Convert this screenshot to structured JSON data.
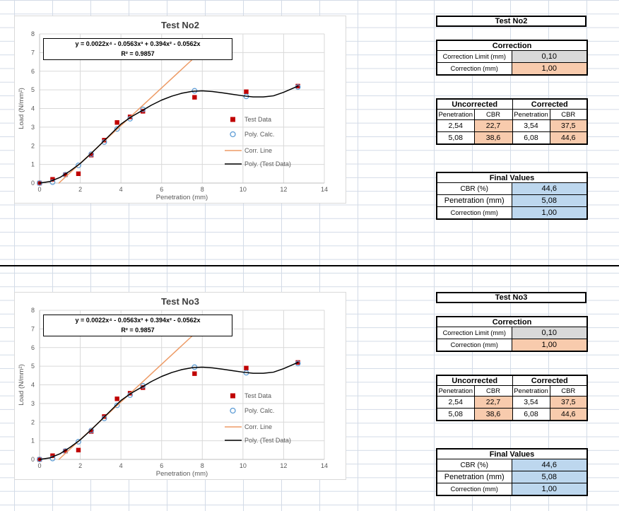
{
  "colors": {
    "cell_gray": "#D9D9D9",
    "cell_orange": "#F8CBAD",
    "cell_blue": "#BDD7EE",
    "test_data_red": "#C00000",
    "poly_calc_blue": "#5B9BD5",
    "corr_line_orange": "#ED9B66",
    "trendline_black": "#000000"
  },
  "chart_data": [
    {
      "type": "scatter",
      "title": "Test No2",
      "xlabel": "Penetration (mm)",
      "ylabel": "Load (N/mm²)",
      "xlim": [
        0,
        14
      ],
      "ylim": [
        0,
        8
      ],
      "xtick_step": 2,
      "ytick_step": 1,
      "grid": true,
      "legend_position": "inside-right",
      "equation": "y = 0.0022x⁴ - 0.0563x³ + 0.394x² - 0.0562x",
      "r_squared": "R² = 0.9857",
      "series": [
        {
          "name": "Test Data",
          "kind": "points",
          "marker": "square",
          "color": "#C00000",
          "x": [
            0,
            0.64,
            1.27,
            1.91,
            2.54,
            3.18,
            3.81,
            4.45,
            5.08,
            7.62,
            10.16,
            12.7
          ],
          "y": [
            0,
            0.2,
            0.45,
            0.5,
            1.5,
            2.3,
            3.25,
            3.55,
            3.85,
            4.6,
            4.9,
            5.2
          ]
        },
        {
          "name": "Poly. Calc.",
          "kind": "points",
          "marker": "circle",
          "color": "#5B9BD5",
          "x": [
            0,
            0.64,
            1.27,
            1.91,
            2.54,
            3.18,
            3.81,
            4.45,
            5.08,
            7.62,
            10.16,
            12.7
          ],
          "y": [
            0,
            0.05,
            0.45,
            0.95,
            1.55,
            2.2,
            2.9,
            3.45,
            3.95,
            4.95,
            4.65,
            5.15
          ]
        },
        {
          "name": "Corr. Line",
          "kind": "line",
          "color": "#ED9B66",
          "x": [
            0.95,
            7.6
          ],
          "y": [
            0,
            6.72
          ]
        },
        {
          "name": "Poly. (Test Data)",
          "kind": "line",
          "color": "#000000",
          "x": [
            0,
            0.5,
            1,
            1.5,
            2,
            2.5,
            3,
            3.5,
            4,
            4.5,
            5,
            5.5,
            6,
            6.5,
            7,
            7.5,
            8,
            8.5,
            9,
            9.5,
            10,
            10.5,
            11,
            11.5,
            12,
            12.7
          ],
          "y": [
            0,
            0.08,
            0.3,
            0.65,
            1.05,
            1.55,
            2.08,
            2.62,
            3.16,
            3.55,
            3.86,
            4.18,
            4.45,
            4.66,
            4.82,
            4.92,
            4.95,
            4.91,
            4.84,
            4.76,
            4.68,
            4.62,
            4.62,
            4.68,
            4.87,
            5.2
          ]
        }
      ]
    },
    {
      "type": "scatter",
      "title": "Test No3",
      "xlabel": "Penetration (mm)",
      "ylabel": "Load (N/mm²)",
      "xlim": [
        0,
        14
      ],
      "ylim": [
        0,
        8
      ],
      "xtick_step": 2,
      "ytick_step": 1,
      "grid": true,
      "legend_position": "inside-right",
      "equation": "y = 0.0022x⁴ - 0.0563x³ + 0.394x² - 0.0562x",
      "r_squared": "R² = 0.9857",
      "series": [
        {
          "name": "Test Data",
          "kind": "points",
          "marker": "square",
          "color": "#C00000",
          "x": [
            0,
            0.64,
            1.27,
            1.91,
            2.54,
            3.18,
            3.81,
            4.45,
            5.08,
            7.62,
            10.16,
            12.7
          ],
          "y": [
            0,
            0.2,
            0.45,
            0.5,
            1.5,
            2.3,
            3.25,
            3.55,
            3.85,
            4.6,
            4.9,
            5.2
          ]
        },
        {
          "name": "Poly. Calc.",
          "kind": "points",
          "marker": "circle",
          "color": "#5B9BD5",
          "x": [
            0,
            0.64,
            1.27,
            1.91,
            2.54,
            3.18,
            3.81,
            4.45,
            5.08,
            7.62,
            10.16,
            12.7
          ],
          "y": [
            0,
            0.05,
            0.45,
            0.95,
            1.55,
            2.2,
            2.9,
            3.45,
            3.95,
            4.95,
            4.65,
            5.15
          ]
        },
        {
          "name": "Corr. Line",
          "kind": "line",
          "color": "#ED9B66",
          "x": [
            0.95,
            7.6
          ],
          "y": [
            0,
            6.72
          ]
        },
        {
          "name": "Poly. (Test Data)",
          "kind": "line",
          "color": "#000000",
          "x": [
            0,
            0.5,
            1,
            1.5,
            2,
            2.5,
            3,
            3.5,
            4,
            4.5,
            5,
            5.5,
            6,
            6.5,
            7,
            7.5,
            8,
            8.5,
            9,
            9.5,
            10,
            10.5,
            11,
            11.5,
            12,
            12.7
          ],
          "y": [
            0,
            0.08,
            0.3,
            0.65,
            1.05,
            1.55,
            2.08,
            2.62,
            3.16,
            3.55,
            3.86,
            4.18,
            4.45,
            4.66,
            4.82,
            4.92,
            4.95,
            4.91,
            4.84,
            4.76,
            4.68,
            4.62,
            4.62,
            4.68,
            4.87,
            5.2
          ]
        }
      ]
    }
  ],
  "sections": [
    {
      "header": "Test No2",
      "correction": {
        "title": "Correction",
        "rows": [
          {
            "label": "Correction Limit (mm)",
            "value": "0,10"
          },
          {
            "label": "Correction (mm)",
            "value": "1,00"
          }
        ]
      },
      "cbr": {
        "groups": [
          "Uncorrected",
          "Corrected"
        ],
        "subheaders": [
          "Penetration",
          "CBR",
          "Penetration",
          "CBR"
        ],
        "rows": [
          [
            "2,54",
            "22,7",
            "3,54",
            "37,5"
          ],
          [
            "5,08",
            "38,6",
            "6,08",
            "44,6"
          ]
        ]
      },
      "final": {
        "title": "Final Values",
        "rows": [
          {
            "label": "CBR (%)",
            "value": "44,6"
          },
          {
            "label": "Penetration (mm)",
            "value": "5,08"
          },
          {
            "label": "Correction (mm)",
            "value": "1,00"
          }
        ]
      }
    },
    {
      "header": "Test No3",
      "correction": {
        "title": "Correction",
        "rows": [
          {
            "label": "Correction Limit (mm)",
            "value": "0,10"
          },
          {
            "label": "Correction (mm)",
            "value": "1,00"
          }
        ]
      },
      "cbr": {
        "groups": [
          "Uncorrected",
          "Corrected"
        ],
        "subheaders": [
          "Penetration",
          "CBR",
          "Penetration",
          "CBR"
        ],
        "rows": [
          [
            "2,54",
            "22,7",
            "3,54",
            "37,5"
          ],
          [
            "5,08",
            "38,6",
            "6,08",
            "44,6"
          ]
        ]
      },
      "final": {
        "title": "Final Values",
        "rows": [
          {
            "label": "CBR (%)",
            "value": "44,6"
          },
          {
            "label": "Penetration (mm)",
            "value": "5,08"
          },
          {
            "label": "Correction (mm)",
            "value": "1,00"
          }
        ]
      }
    }
  ]
}
